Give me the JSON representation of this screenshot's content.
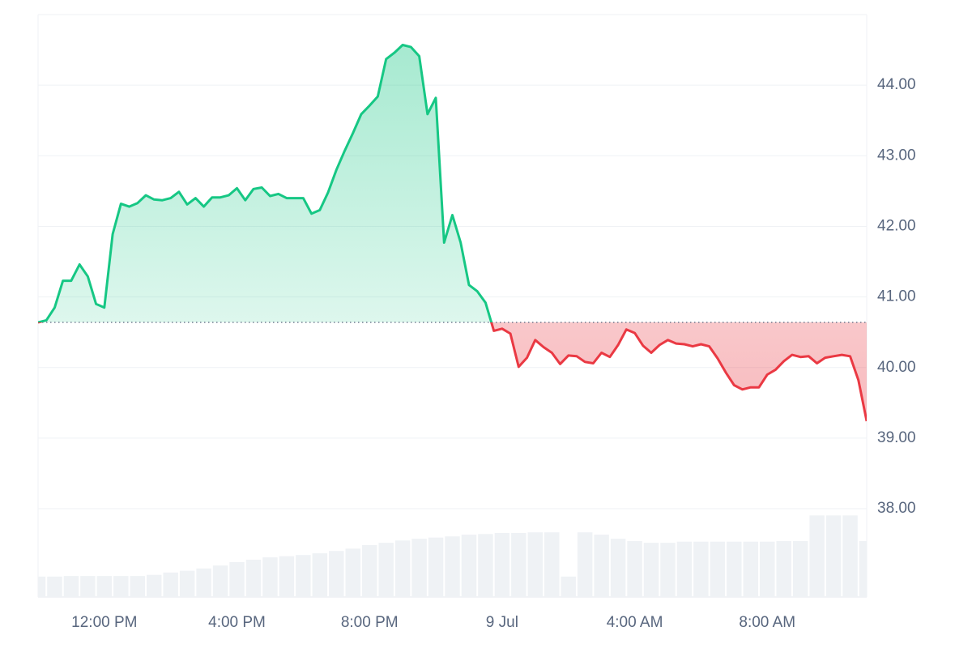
{
  "chart_data": {
    "type": "price-area",
    "up_color": "#16c784",
    "down_color": "#ea3943",
    "baseline": 40.64,
    "grid": true,
    "xlim": [
      10,
      35
    ],
    "xticks": [
      {
        "value": 12,
        "label": "12:00 PM"
      },
      {
        "value": 16,
        "label": "4:00 PM"
      },
      {
        "value": 20,
        "label": "8:00 PM"
      },
      {
        "value": 24,
        "label": "9 Jul"
      },
      {
        "value": 28,
        "label": "4:00 AM"
      },
      {
        "value": 32,
        "label": "8:00 AM"
      }
    ],
    "ylim": [
      36.75,
      45.0
    ],
    "yticks": [
      {
        "value": 38,
        "label": "38.00"
      },
      {
        "value": 39,
        "label": "39.00"
      },
      {
        "value": 40,
        "label": "40.00"
      },
      {
        "value": 41,
        "label": "41.00"
      },
      {
        "value": 42,
        "label": "42.00"
      },
      {
        "value": 43,
        "label": "43.00"
      },
      {
        "value": 44,
        "label": "44.00"
      }
    ],
    "y2lim": [
      0,
      100
    ],
    "series": [
      {
        "kind": "line",
        "x": [
          10,
          10.25,
          10.5,
          10.75,
          11,
          11.25,
          11.5,
          11.75,
          12,
          12.25,
          12.5,
          12.75,
          13,
          13.25,
          13.5,
          13.75,
          14,
          14.25,
          14.5,
          14.75,
          15,
          15.25,
          15.5,
          15.75,
          16,
          16.25,
          16.5,
          16.75,
          17,
          17.25,
          17.5,
          17.75,
          18,
          18.25,
          18.5,
          18.75,
          19,
          19.25,
          19.5,
          19.75,
          20,
          20.25,
          20.5,
          20.75,
          21,
          21.25,
          21.5,
          21.75,
          22,
          22.25,
          22.5,
          22.75,
          23,
          23.25,
          23.5,
          23.75,
          24,
          24.25,
          24.5,
          24.75,
          25,
          25.25,
          25.5,
          25.75,
          26,
          26.25,
          26.5,
          26.75,
          27,
          27.25,
          27.5,
          27.75,
          28,
          28.25,
          28.5,
          28.75,
          29,
          29.25,
          29.5,
          29.75,
          30,
          30.25,
          30.5,
          30.75,
          31,
          31.25,
          31.5,
          31.75,
          32,
          32.25,
          32.5,
          32.75,
          33,
          33.25,
          33.5,
          33.75,
          34,
          34.25,
          34.5,
          34.75,
          35
        ],
        "values": [
          40.64,
          40.67,
          40.85,
          41.23,
          41.23,
          41.46,
          41.29,
          40.9,
          40.85,
          41.89,
          42.32,
          42.28,
          42.33,
          42.44,
          42.38,
          42.37,
          42.4,
          42.49,
          42.31,
          42.4,
          42.28,
          42.41,
          42.41,
          42.44,
          42.54,
          42.37,
          42.53,
          42.55,
          42.43,
          42.46,
          42.4,
          42.4,
          42.4,
          42.18,
          42.23,
          42.48,
          42.8,
          43.07,
          43.32,
          43.59,
          43.71,
          43.84,
          44.37,
          44.46,
          44.57,
          44.54,
          44.41,
          43.59,
          43.82,
          41.77,
          42.16,
          41.77,
          41.17,
          41.08,
          40.92,
          40.52,
          40.55,
          40.48,
          40.01,
          40.14,
          40.39,
          40.29,
          40.21,
          40.05,
          40.17,
          40.16,
          40.08,
          40.06,
          40.21,
          40.15,
          40.32,
          40.54,
          40.49,
          40.31,
          40.21,
          40.32,
          40.39,
          40.34,
          40.33,
          40.3,
          40.33,
          40.3,
          40.13,
          39.93,
          39.75,
          39.69,
          39.72,
          39.72,
          39.9,
          39.97,
          40.09,
          40.18,
          40.15,
          40.16,
          40.06,
          40.14,
          40.16,
          40.18,
          40.16,
          39.82,
          39.24
        ]
      },
      {
        "kind": "volume",
        "axis": "y2",
        "color": "#eff2f5",
        "x": [
          10,
          10.5,
          11,
          11.5,
          12,
          12.5,
          13,
          13.5,
          14,
          14.5,
          15,
          15.5,
          16,
          16.5,
          17,
          17.5,
          18,
          18.5,
          19,
          19.5,
          20,
          20.5,
          21,
          21.5,
          22,
          22.5,
          23,
          23.5,
          24,
          24.5,
          25,
          25.5,
          26,
          26.5,
          27,
          27.5,
          28,
          28.5,
          29,
          29.5,
          30,
          30.5,
          31,
          31.5,
          32,
          32.5,
          33,
          33.5,
          34,
          34.5,
          35
        ],
        "values": [
          3.5,
          3.5,
          3.6,
          3.6,
          3.6,
          3.6,
          3.6,
          3.8,
          4.2,
          4.5,
          4.9,
          5.4,
          6.0,
          6.4,
          6.8,
          7.0,
          7.2,
          7.5,
          7.9,
          8.3,
          8.9,
          9.3,
          9.7,
          10.0,
          10.2,
          10.4,
          10.7,
          10.8,
          11.0,
          11.0,
          11.1,
          11.1,
          3.5,
          11.1,
          10.7,
          10.0,
          9.6,
          9.3,
          9.3,
          9.5,
          9.5,
          9.5,
          9.5,
          9.5,
          9.5,
          9.6,
          9.6,
          14.0,
          14.0,
          14.0,
          9.6
        ]
      }
    ]
  }
}
